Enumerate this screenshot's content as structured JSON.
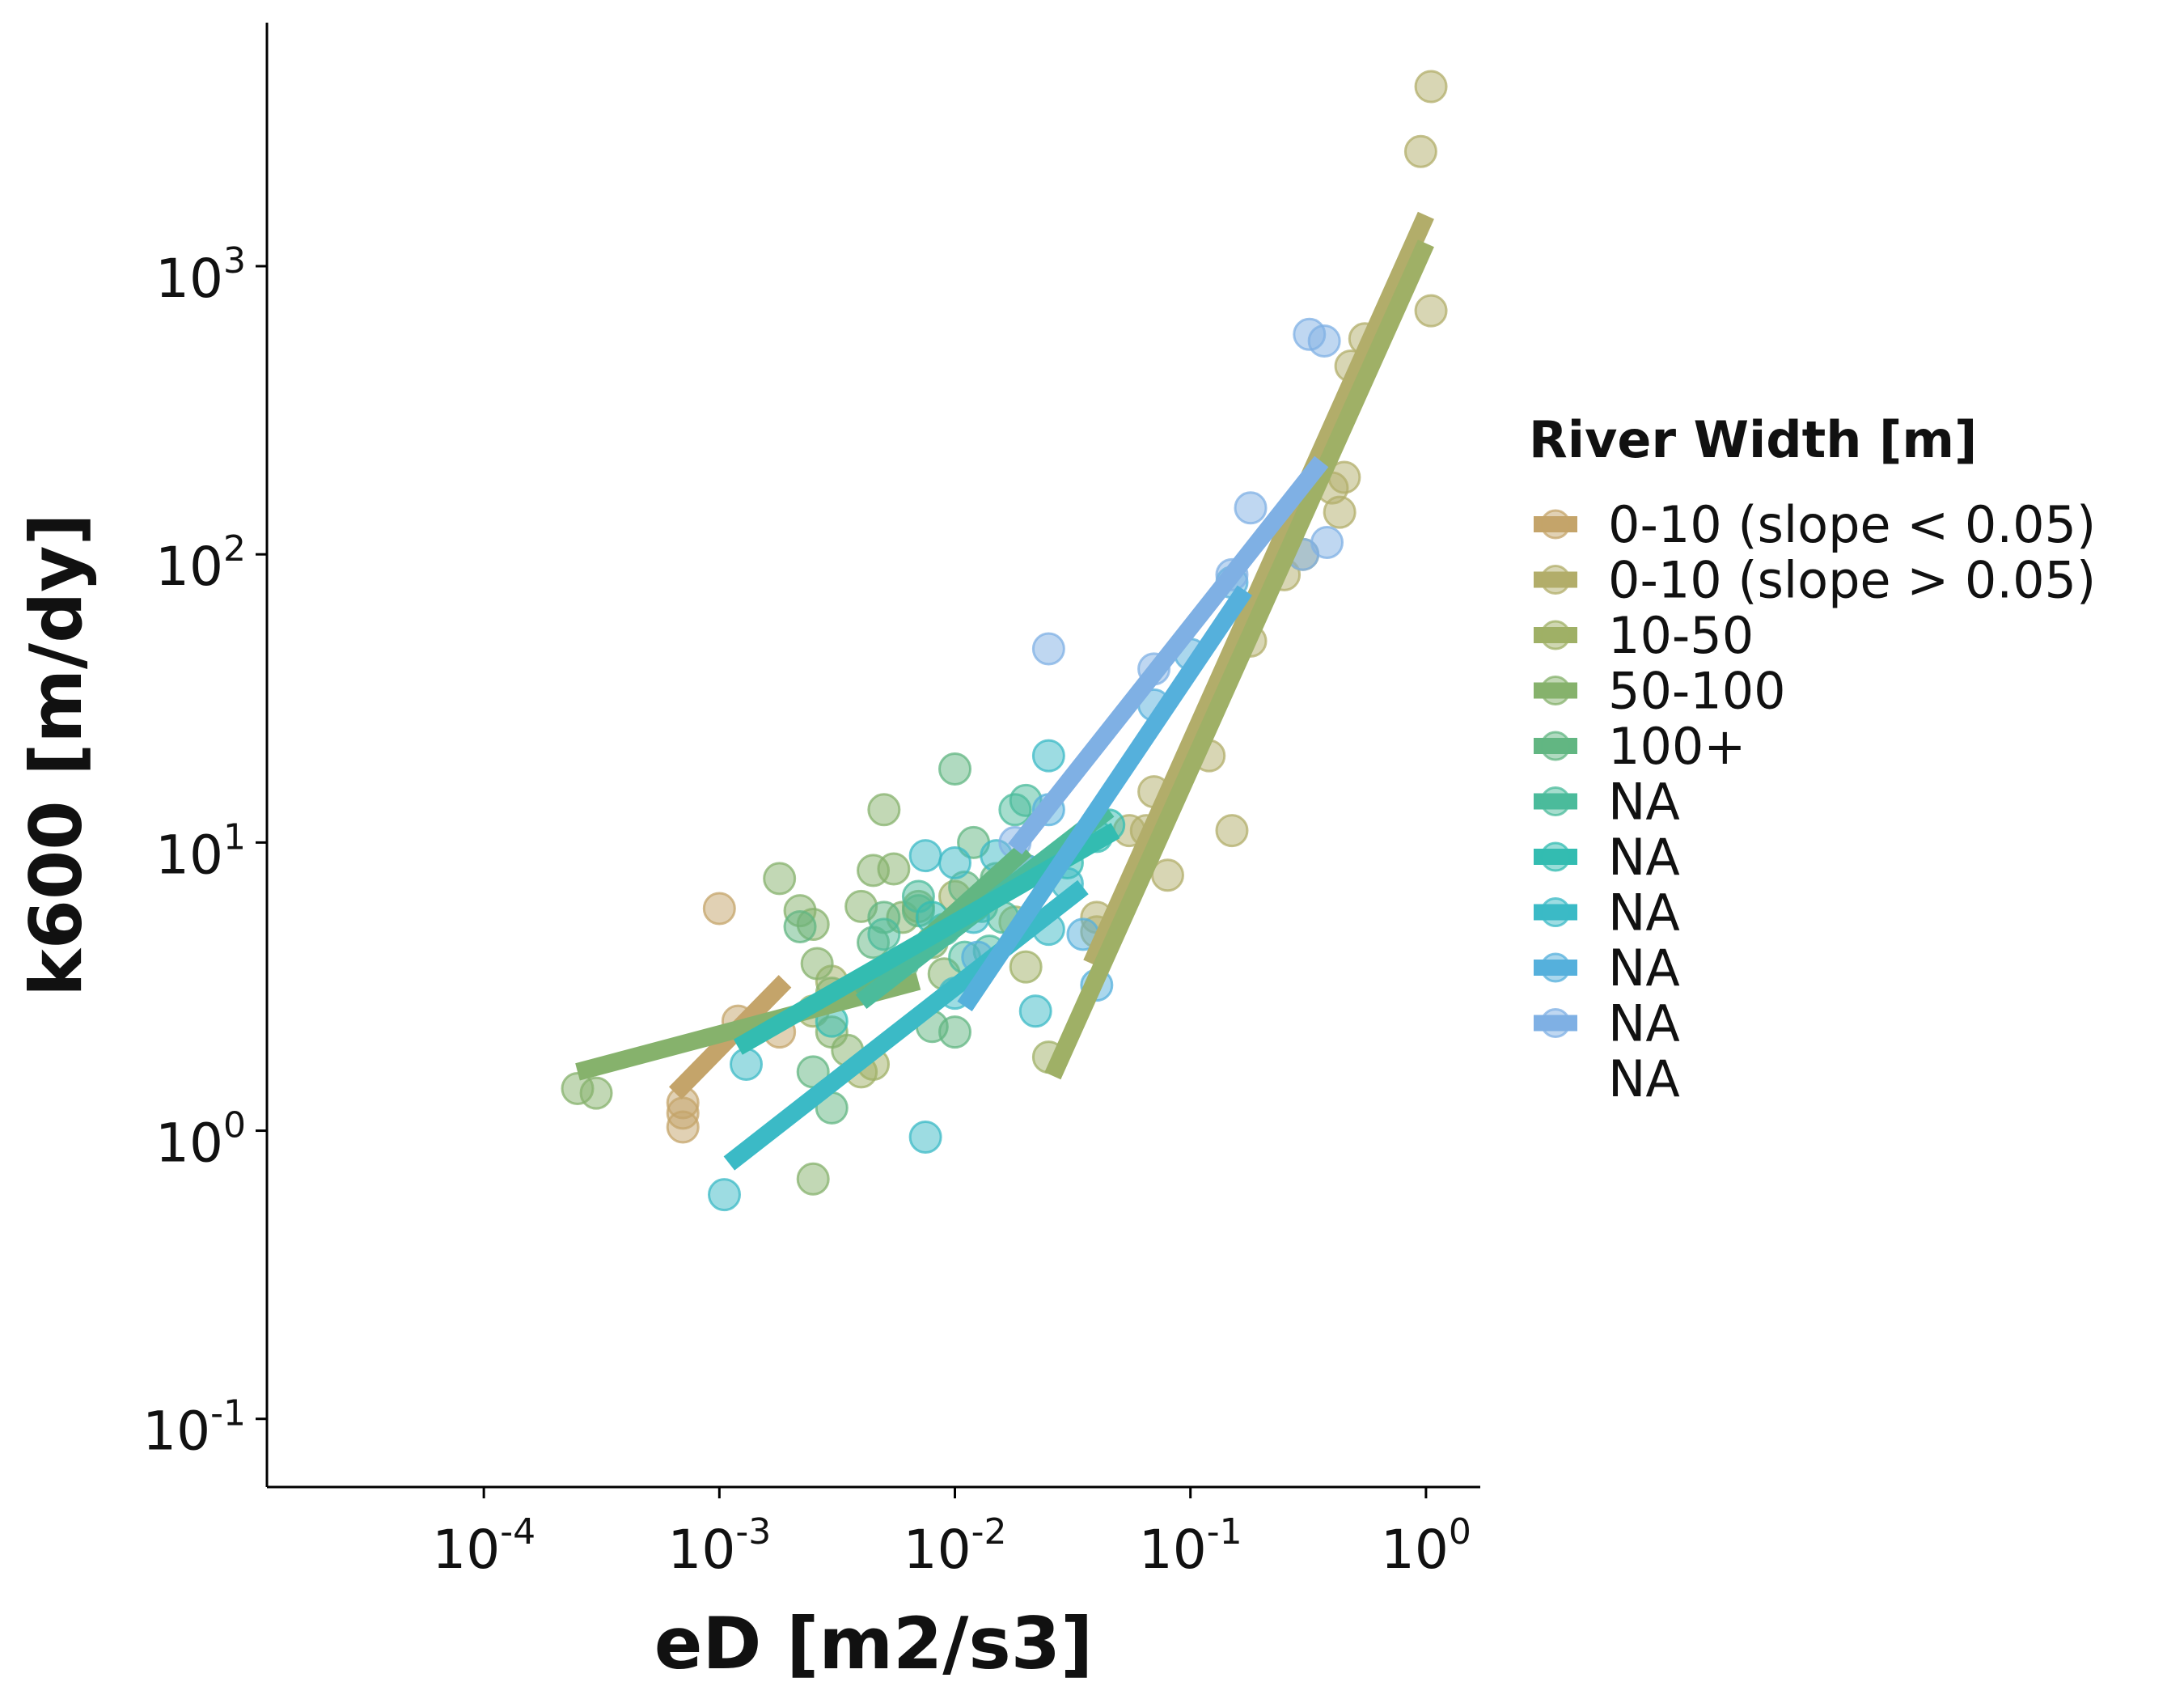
{
  "chart_data": {
    "type": "scatter",
    "xlabel": "eD [m2/s3]",
    "ylabel": "k600 [m/dy]",
    "xscale": "log",
    "yscale": "log",
    "xlim": [
      1.2e-05,
      1.7
    ],
    "ylim": [
      0.058,
      7000
    ],
    "x_ticks": [
      {
        "base": "10",
        "exp": "-4",
        "value": 0.0001
      },
      {
        "base": "10",
        "exp": "-3",
        "value": 0.001
      },
      {
        "base": "10",
        "exp": "-2",
        "value": 0.01
      },
      {
        "base": "10",
        "exp": "-1",
        "value": 0.1
      },
      {
        "base": "10",
        "exp": "0",
        "value": 1
      }
    ],
    "y_ticks": [
      {
        "base": "10",
        "exp": "-1",
        "value": 0.1
      },
      {
        "base": "10",
        "exp": "0",
        "value": 1
      },
      {
        "base": "10",
        "exp": "1",
        "value": 10
      },
      {
        "base": "10",
        "exp": "2",
        "value": 100
      },
      {
        "base": "10",
        "exp": "3",
        "value": 1000
      }
    ],
    "grid": false,
    "legend": {
      "title": "River Width [m]",
      "position": "right",
      "entries": [
        {
          "label": "0-10 (slope < 0.05)",
          "color": "#c4a46a"
        },
        {
          "label": "0-10 (slope > 0.05)",
          "color": "#b2ad6a"
        },
        {
          "label": "10-50",
          "color": "#9fb066"
        },
        {
          "label": "50-100",
          "color": "#86b26c"
        },
        {
          "label": "100+",
          "color": "#62b682"
        },
        {
          "label": "NA",
          "color": "#4bbb9b"
        },
        {
          "label": "NA",
          "color": "#33bcb1"
        },
        {
          "label": "NA",
          "color": "#3bbac6"
        },
        {
          "label": "NA",
          "color": "#55b0dc"
        },
        {
          "label": "NA",
          "color": "#7fb0e4"
        },
        {
          "label": "NA",
          "color": ""
        }
      ]
    },
    "series": [
      {
        "color": "#c4a46a",
        "points": [
          [
            0.0007,
            1.25
          ],
          [
            0.0007,
            1.03
          ],
          [
            0.0007,
            1.15
          ],
          [
            0.001,
            5.9
          ],
          [
            0.0018,
            2.2
          ],
          [
            0.0012,
            2.4
          ]
        ],
        "fit": [
          [
            0.00065,
            1.35
          ],
          [
            0.0019,
            3.3
          ]
        ]
      },
      {
        "color": "#b2ad6a",
        "points": [
          [
            1.05,
            4200
          ],
          [
            0.95,
            2500
          ],
          [
            1.05,
            700
          ],
          [
            0.55,
            560
          ],
          [
            0.48,
            450
          ],
          [
            0.45,
            185
          ],
          [
            0.43,
            140
          ],
          [
            0.4,
            170
          ],
          [
            0.3,
            100
          ],
          [
            0.25,
            85
          ],
          [
            0.18,
            50
          ],
          [
            0.15,
            11
          ],
          [
            0.12,
            20
          ],
          [
            0.08,
            7.7
          ],
          [
            0.07,
            15
          ],
          [
            0.065,
            11
          ],
          [
            0.055,
            11
          ],
          [
            0.04,
            5.5
          ],
          [
            0.04,
            4.9
          ]
        ],
        "fit": [
          [
            0.038,
            3.8
          ],
          [
            1.0,
            1500
          ]
        ]
      },
      {
        "color": "#9fb066",
        "points": [
          [
            0.025,
            1.8
          ],
          [
            0.02,
            3.7
          ],
          [
            0.018,
            5.3
          ],
          [
            0.015,
            7.0
          ],
          [
            0.01,
            6.5
          ],
          [
            0.0025,
            2.6
          ],
          [
            0.003,
            3.3
          ],
          [
            0.004,
            1.6
          ],
          [
            0.0045,
            1.7
          ]
        ],
        "fit": [
          [
            0.026,
            1.55
          ],
          [
            1.0,
            1200
          ]
        ]
      },
      {
        "color": "#86b26c",
        "points": [
          [
            0.00025,
            1.4
          ],
          [
            0.0003,
            1.35
          ],
          [
            0.0018,
            7.5
          ],
          [
            0.0022,
            5.8
          ],
          [
            0.0025,
            5.2
          ],
          [
            0.0026,
            3.8
          ],
          [
            0.003,
            2.2
          ],
          [
            0.003,
            3.0
          ],
          [
            0.0035,
            1.9
          ],
          [
            0.004,
            6.0
          ],
          [
            0.0045,
            8.0
          ],
          [
            0.005,
            13.0
          ],
          [
            0.0055,
            8.1
          ],
          [
            0.006,
            5.5
          ],
          [
            0.007,
            6.0
          ],
          [
            0.008,
            4.5
          ],
          [
            0.009,
            3.5
          ],
          [
            0.0025,
            0.68
          ]
        ],
        "fit": [
          [
            0.00025,
            1.6
          ],
          [
            0.007,
            3.3
          ]
        ]
      },
      {
        "color": "#62b682",
        "points": [
          [
            0.0022,
            5.1
          ],
          [
            0.0025,
            1.6
          ],
          [
            0.003,
            1.2
          ],
          [
            0.0045,
            4.5
          ],
          [
            0.005,
            5.5
          ],
          [
            0.006,
            3.8
          ],
          [
            0.007,
            5.8
          ],
          [
            0.008,
            2.3
          ],
          [
            0.01,
            2.2
          ],
          [
            0.012,
            10.0
          ],
          [
            0.01,
            18.0
          ],
          [
            0.011,
            7.0
          ],
          [
            0.015,
            7.5
          ],
          [
            0.02,
            8.0
          ]
        ],
        "fit": [
          [
            0.004,
            2.9
          ],
          [
            0.02,
            9.5
          ]
        ]
      },
      {
        "color": "#4bbb9b",
        "points": [
          [
            0.005,
            4.8
          ],
          [
            0.007,
            6.5
          ],
          [
            0.009,
            5.0
          ],
          [
            0.011,
            4.0
          ],
          [
            0.013,
            6.0
          ],
          [
            0.016,
            5.5
          ],
          [
            0.018,
            13.0
          ],
          [
            0.02,
            14.0
          ],
          [
            0.014,
            4.2
          ]
        ],
        "fit": [
          [
            0.004,
            2.8
          ],
          [
            0.045,
            13.0
          ]
        ]
      },
      {
        "color": "#33bcb1",
        "points": [
          [
            0.003,
            2.4
          ],
          [
            0.005,
            3.5
          ],
          [
            0.008,
            5.5
          ],
          [
            0.012,
            6.0
          ],
          [
            0.03,
            8.5
          ],
          [
            0.04,
            10.5
          ],
          [
            0.045,
            11.5
          ]
        ],
        "fit": [
          [
            0.0012,
            1.95
          ],
          [
            0.048,
            11.0
          ]
        ]
      },
      {
        "color": "#3bbac6",
        "points": [
          [
            0.00105,
            0.6
          ],
          [
            0.0013,
            1.7
          ],
          [
            0.0075,
            0.95
          ],
          [
            0.01,
            3.0
          ],
          [
            0.012,
            5.5
          ],
          [
            0.015,
            9.0
          ],
          [
            0.022,
            2.6
          ],
          [
            0.025,
            5.0
          ],
          [
            0.03,
            7.2
          ],
          [
            0.025,
            20.0
          ],
          [
            0.01,
            8.5
          ],
          [
            0.0075,
            9.0
          ]
        ],
        "fit": [
          [
            0.0011,
            0.77
          ],
          [
            0.035,
            7.0
          ]
        ]
      },
      {
        "color": "#55b0dc",
        "points": [
          [
            0.0125,
            4.0
          ],
          [
            0.02,
            8.0
          ],
          [
            0.025,
            13.0
          ],
          [
            0.035,
            4.8
          ],
          [
            0.04,
            3.2
          ],
          [
            0.07,
            30.0
          ],
          [
            0.1,
            45.0
          ],
          [
            0.15,
            80.0
          ]
        ],
        "fit": [
          [
            0.011,
            2.7
          ],
          [
            0.17,
            75.0
          ]
        ]
      },
      {
        "color": "#7fb0e4",
        "points": [
          [
            0.018,
            10.0
          ],
          [
            0.025,
            47.0
          ],
          [
            0.07,
            40.0
          ],
          [
            0.15,
            85.0
          ],
          [
            0.18,
            145.0
          ],
          [
            0.3,
            100.0
          ],
          [
            0.32,
            580.0
          ],
          [
            0.37,
            550.0
          ],
          [
            0.38,
            110.0
          ]
        ],
        "fit": [
          [
            0.018,
            9.5
          ],
          [
            0.36,
            210.0
          ]
        ]
      }
    ]
  }
}
